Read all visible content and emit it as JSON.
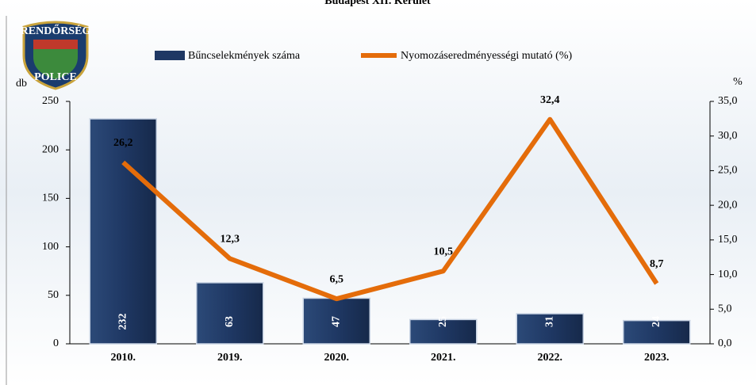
{
  "chart_data": {
    "type": "bar_line",
    "title": "Budapest XII. Kerület",
    "logo": {
      "top": "RENDŐRSÉG",
      "bottom": "POLICE"
    },
    "y_label": "db",
    "y2_label": "%",
    "categories": [
      "2010.",
      "2019.",
      "2020.",
      "2021.",
      "2022.",
      "2023."
    ],
    "series": [
      {
        "name": "Bűncselekmények száma",
        "type": "bar",
        "color": "#1f3864",
        "values": [
          232,
          63,
          47,
          25,
          31,
          24
        ]
      },
      {
        "name": "Nyomozáseredményességi mutató (%)",
        "type": "line",
        "axis": "y2",
        "color": "#e46c0a",
        "values": [
          26.2,
          12.3,
          6.5,
          10.5,
          32.4,
          8.7
        ],
        "value_labels": [
          "26,2",
          "12,3",
          "6,5",
          "10,5",
          "32,4",
          "8,7"
        ]
      }
    ],
    "ylim": [
      0,
      250
    ],
    "yticks": [
      0,
      50,
      100,
      150,
      200,
      250
    ],
    "y2lim": [
      0,
      35
    ],
    "y2ticks": [
      {
        "value": 0,
        "label": "0,0"
      },
      {
        "value": 5,
        "label": "5,0"
      },
      {
        "value": 10,
        "label": "10,0"
      },
      {
        "value": 15,
        "label": "15,0"
      },
      {
        "value": 20,
        "label": "20,0"
      },
      {
        "value": 25,
        "label": "25,0"
      },
      {
        "value": 30,
        "label": "30,0"
      },
      {
        "value": 35,
        "label": "35,0"
      }
    ]
  }
}
